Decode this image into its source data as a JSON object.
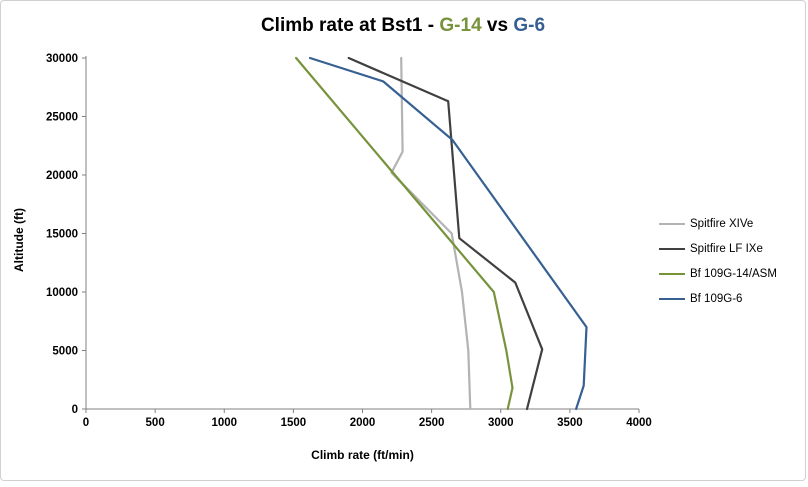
{
  "title": {
    "part1": "Climb rate at Bst1 - ",
    "part2": "G-14",
    "part3": " vs ",
    "part4": "G-6"
  },
  "colors": {
    "accent_green": "#77933c",
    "accent_blue": "#376092",
    "axis": "#808080",
    "background": "#ffffff"
  },
  "chart_data": {
    "type": "line",
    "title": "Climb rate at Bst1 - G-14 vs G-6",
    "xlabel": "Climb rate (ft/min)",
    "ylabel": "Altitude (ft)",
    "xlim": [
      0,
      4000
    ],
    "ylim": [
      0,
      30000
    ],
    "xticks": [
      0,
      500,
      1000,
      1500,
      2000,
      2500,
      3000,
      3500,
      4000
    ],
    "yticks": [
      0,
      5000,
      10000,
      15000,
      20000,
      25000,
      30000
    ],
    "grid": false,
    "legend_position": "right",
    "series": [
      {
        "name": "Spitfire XIVe",
        "color": "#b3b3b3",
        "points": [
          [
            2780,
            0
          ],
          [
            2765,
            5000
          ],
          [
            2720,
            10000
          ],
          [
            2645,
            15000
          ],
          [
            2210,
            20200
          ],
          [
            2290,
            22000
          ],
          [
            2280,
            30000
          ]
        ]
      },
      {
        "name": "Spitfire LF IXe",
        "color": "#404040",
        "points": [
          [
            3190,
            0
          ],
          [
            3300,
            5100
          ],
          [
            3105,
            10800
          ],
          [
            2700,
            14600
          ],
          [
            2620,
            26300
          ],
          [
            1900,
            30000
          ]
        ]
      },
      {
        "name": "Bf 109G-14/ASM",
        "color": "#77933c",
        "points": [
          [
            3050,
            0
          ],
          [
            3085,
            1800
          ],
          [
            3040,
            5000
          ],
          [
            2950,
            10000
          ],
          [
            1520,
            30000
          ]
        ]
      },
      {
        "name": "Bf 109G-6",
        "color": "#376092",
        "points": [
          [
            3545,
            0
          ],
          [
            3600,
            2000
          ],
          [
            3620,
            7000
          ],
          [
            2650,
            23000
          ],
          [
            2150,
            28000
          ],
          [
            1620,
            30000
          ]
        ]
      }
    ]
  }
}
